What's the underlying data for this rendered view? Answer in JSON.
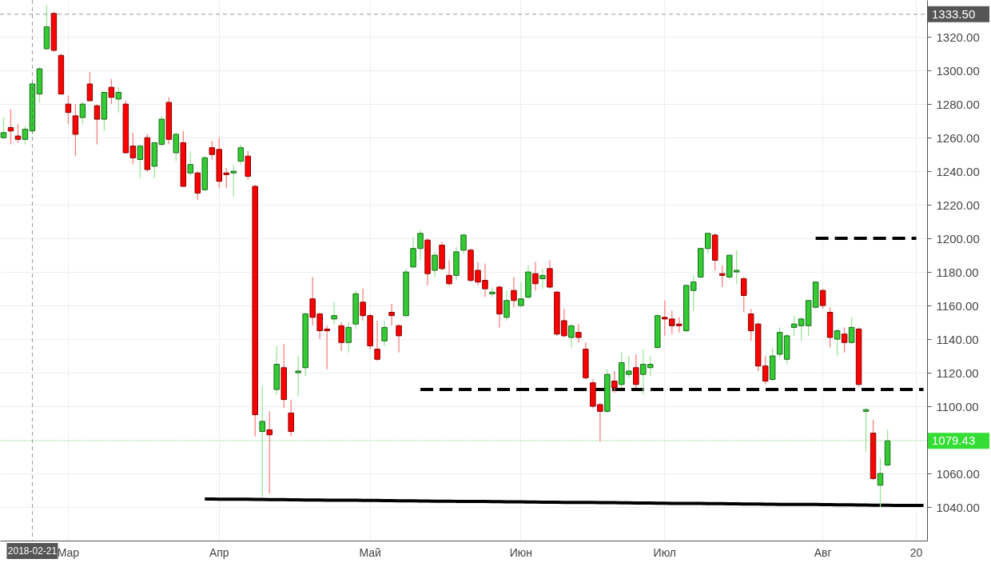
{
  "chart_data": {
    "type": "candlestick",
    "categories": [
      null,
      null,
      null,
      null,
      "2018-02-21",
      null,
      null,
      null,
      null,
      "Мар",
      null,
      null,
      null,
      null,
      null,
      null,
      null,
      null,
      null,
      null,
      null,
      null,
      null,
      null,
      null,
      null,
      null,
      null,
      null,
      null,
      "Апр",
      null,
      null,
      null,
      null,
      null,
      null,
      null,
      null,
      null,
      null,
      null,
      null,
      null,
      null,
      null,
      null,
      null,
      null,
      null,
      null,
      "Май",
      null,
      null,
      null,
      null,
      null,
      null,
      null,
      null,
      null,
      null,
      null,
      null,
      null,
      null,
      null,
      null,
      null,
      null,
      null,
      null,
      "Июн",
      null,
      null,
      null,
      null,
      null,
      null,
      null,
      null,
      null,
      null,
      null,
      null,
      null,
      null,
      null,
      null,
      null,
      null,
      null,
      "Июл",
      null,
      null,
      null,
      null,
      null,
      null,
      null,
      null,
      null,
      null,
      null,
      null,
      null,
      null,
      null,
      null,
      null,
      null,
      null,
      null,
      null,
      "Авг",
      null,
      null,
      null,
      null,
      null,
      null,
      null,
      null,
      null,
      null,
      null,
      null,
      "20",
      null
    ],
    "ohlc": [
      [
        1260,
        1272,
        1259,
        1263
      ],
      [
        1266,
        1277,
        1256,
        1264
      ],
      [
        1261,
        1268,
        1257,
        1259
      ],
      [
        1259,
        1267,
        1256,
        1265
      ],
      [
        1264,
        1293,
        1262,
        1292
      ],
      [
        1286,
        1302,
        1281,
        1301
      ],
      [
        1313,
        1339,
        1312,
        1326
      ],
      [
        1334,
        1335,
        1311,
        1312
      ],
      [
        1309,
        1310,
        1286,
        1286
      ],
      [
        1280,
        1285,
        1268,
        1275
      ],
      [
        1273,
        1280,
        1249,
        1262
      ],
      [
        1272,
        1281,
        1268,
        1280
      ],
      [
        1292,
        1299,
        1282,
        1282
      ],
      [
        1279,
        1280,
        1256,
        1271
      ],
      [
        1271,
        1287,
        1264,
        1287
      ],
      [
        1290,
        1295,
        1280,
        1284
      ],
      [
        1283,
        1290,
        1275,
        1287
      ],
      [
        1280,
        1282,
        1251,
        1251
      ],
      [
        1255,
        1263,
        1244,
        1248
      ],
      [
        1247,
        1256,
        1236,
        1255
      ],
      [
        1260,
        1262,
        1240,
        1241
      ],
      [
        1243,
        1257,
        1236,
        1257
      ],
      [
        1256,
        1273,
        1255,
        1271
      ],
      [
        1281,
        1284,
        1256,
        1259
      ],
      [
        1251,
        1263,
        1246,
        1262
      ],
      [
        1257,
        1264,
        1231,
        1231
      ],
      [
        1239,
        1252,
        1237,
        1244
      ],
      [
        1239,
        1240,
        1223,
        1227
      ],
      [
        1229,
        1249,
        1228,
        1248
      ],
      [
        1254,
        1258,
        1247,
        1250
      ],
      [
        1253,
        1260,
        1230,
        1234
      ],
      [
        1239,
        1242,
        1230,
        1238
      ],
      [
        1239,
        1244,
        1225,
        1240
      ],
      [
        1246,
        1256,
        1244,
        1254
      ],
      [
        1249,
        1252,
        1235,
        1237
      ],
      [
        1231,
        1232,
        1082,
        1095
      ],
      [
        1085,
        1112,
        1046,
        1091
      ],
      [
        1086,
        1097,
        1048,
        1083
      ],
      [
        1110,
        1136,
        1107,
        1125
      ],
      [
        1123,
        1137,
        1099,
        1104
      ],
      [
        1096,
        1104,
        1082,
        1085
      ],
      [
        1120,
        1130,
        1106,
        1121
      ],
      [
        1123,
        1156,
        1118,
        1155
      ],
      [
        1164,
        1177,
        1148,
        1153
      ],
      [
        1155,
        1156,
        1140,
        1145
      ],
      [
        1146,
        1148,
        1122,
        1145
      ],
      [
        1152,
        1162,
        1149,
        1154
      ],
      [
        1148,
        1150,
        1133,
        1138
      ],
      [
        1138,
        1150,
        1132,
        1147
      ],
      [
        1149,
        1169,
        1146,
        1167
      ],
      [
        1162,
        1170,
        1151,
        1154
      ],
      [
        1154,
        1155,
        1134,
        1136
      ],
      [
        1134,
        1151,
        1127,
        1128
      ],
      [
        1139,
        1151,
        1136,
        1147
      ],
      [
        1156,
        1161,
        1148,
        1154
      ],
      [
        1148,
        1149,
        1132,
        1142
      ],
      [
        1154,
        1182,
        1153,
        1180
      ],
      [
        1183,
        1201,
        1182,
        1194
      ],
      [
        1194,
        1205,
        1187,
        1203
      ],
      [
        1199,
        1200,
        1172,
        1179
      ],
      [
        1181,
        1192,
        1177,
        1190
      ],
      [
        1196,
        1198,
        1181,
        1182
      ],
      [
        1178,
        1187,
        1172,
        1173
      ],
      [
        1178,
        1195,
        1175,
        1192
      ],
      [
        1193,
        1203,
        1191,
        1202
      ],
      [
        1193,
        1194,
        1174,
        1175
      ],
      [
        1181,
        1186,
        1172,
        1174
      ],
      [
        1175,
        1185,
        1165,
        1170
      ],
      [
        1167,
        1171,
        1165,
        1168
      ],
      [
        1171,
        1172,
        1147,
        1155
      ],
      [
        1153,
        1169,
        1151,
        1163
      ],
      [
        1169,
        1177,
        1159,
        1163
      ],
      [
        1160,
        1174,
        1159,
        1164
      ],
      [
        1165,
        1184,
        1164,
        1180
      ],
      [
        1179,
        1186,
        1169,
        1173
      ],
      [
        1176,
        1182,
        1170,
        1178
      ],
      [
        1182,
        1187,
        1170,
        1171
      ],
      [
        1168,
        1169,
        1142,
        1143
      ],
      [
        1151,
        1158,
        1141,
        1142
      ],
      [
        1141,
        1148,
        1135,
        1148
      ],
      [
        1144,
        1149,
        1138,
        1141
      ],
      [
        1134,
        1138,
        1116,
        1117
      ],
      [
        1114,
        1116,
        1099,
        1100
      ],
      [
        1101,
        1102,
        1079,
        1097
      ],
      [
        1097,
        1122,
        1096,
        1119
      ],
      [
        1115,
        1121,
        1108,
        1111
      ],
      [
        1113,
        1132,
        1111,
        1126
      ],
      [
        1119,
        1130,
        1117,
        1121
      ],
      [
        1123,
        1131,
        1111,
        1113
      ],
      [
        1119,
        1134,
        1107,
        1125
      ],
      [
        1123,
        1130,
        1118,
        1125
      ],
      [
        1135,
        1155,
        1134,
        1154
      ],
      [
        1153,
        1163,
        1142,
        1152
      ],
      [
        1152,
        1157,
        1143,
        1148
      ],
      [
        1149,
        1153,
        1144,
        1148
      ],
      [
        1145,
        1172,
        1144,
        1172
      ],
      [
        1169,
        1178,
        1157,
        1174
      ],
      [
        1177,
        1194,
        1176,
        1194
      ],
      [
        1194,
        1203,
        1191,
        1203
      ],
      [
        1202,
        1203,
        1181,
        1187
      ],
      [
        1179,
        1184,
        1171,
        1178
      ],
      [
        1177,
        1190,
        1176,
        1190
      ],
      [
        1180,
        1193,
        1173,
        1181
      ],
      [
        1176,
        1177,
        1156,
        1166
      ],
      [
        1155,
        1158,
        1139,
        1145
      ],
      [
        1149,
        1150,
        1121,
        1124
      ],
      [
        1124,
        1130,
        1113,
        1115
      ],
      [
        1116,
        1135,
        1115,
        1130
      ],
      [
        1131,
        1147,
        1129,
        1144
      ],
      [
        1128,
        1143,
        1125,
        1142
      ],
      [
        1147,
        1154,
        1142,
        1149
      ],
      [
        1148,
        1153,
        1139,
        1152
      ],
      [
        1148,
        1163,
        1142,
        1163
      ],
      [
        1159,
        1174,
        1158,
        1174
      ],
      [
        1169,
        1170,
        1158,
        1160
      ],
      [
        1156,
        1159,
        1135,
        1141
      ],
      [
        1140,
        1146,
        1130,
        1145
      ],
      [
        1143,
        1147,
        1132,
        1138
      ],
      [
        1138,
        1153,
        1137,
        1147
      ],
      [
        1146,
        1147,
        1112,
        1113
      ],
      [
        1097,
        1099,
        1073,
        1098
      ],
      [
        1084,
        1092,
        1056,
        1057
      ],
      [
        1053,
        1069,
        1040,
        1060
      ],
      [
        1065,
        1086,
        1064,
        1079.43
      ],
      null,
      null,
      null,
      null,
      null
    ],
    "colors": [
      "#33cc33",
      "#ff0000",
      "#ff0000",
      "#33cc33",
      "#33cc33",
      "#33cc33",
      "#33cc33",
      "#ff0000",
      "#ff0000",
      "#ff0000",
      "#ff0000",
      "#33cc33",
      "#ff0000",
      "#ff0000",
      "#33cc33",
      "#ff0000",
      "#33cc33",
      "#ff0000",
      "#ff0000",
      "#33cc33",
      "#ff0000",
      "#33cc33",
      "#33cc33",
      "#ff0000",
      "#33cc33",
      "#ff0000",
      "#33cc33",
      "#ff0000",
      "#33cc33",
      "#ff0000",
      "#ff0000",
      "#ff0000",
      "#33cc33",
      "#33cc33",
      "#ff0000",
      "#ff0000",
      "#33cc33",
      "#ff0000",
      "#33cc33",
      "#ff0000",
      "#ff0000",
      "#33cc33",
      "#33cc33",
      "#ff0000",
      "#ff0000",
      "#ff0000",
      "#33cc33",
      "#ff0000",
      "#33cc33",
      "#33cc33",
      "#ff0000",
      "#ff0000",
      "#ff0000",
      "#33cc33",
      "#ff0000",
      "#ff0000",
      "#33cc33",
      "#33cc33",
      "#33cc33",
      "#ff0000",
      "#33cc33",
      "#ff0000",
      "#ff0000",
      "#33cc33",
      "#33cc33",
      "#ff0000",
      "#ff0000",
      "#ff0000",
      "#33cc33",
      "#ff0000",
      "#33cc33",
      "#ff0000",
      "#33cc33",
      "#33cc33",
      "#ff0000",
      "#33cc33",
      "#ff0000",
      "#ff0000",
      "#ff0000",
      "#33cc33",
      "#ff0000",
      "#ff0000",
      "#ff0000",
      "#ff0000",
      "#33cc33",
      "#ff0000",
      "#33cc33",
      "#33cc33",
      "#ff0000",
      "#33cc33",
      "#33cc33",
      "#33cc33",
      "#ff0000",
      "#ff0000",
      "#ff0000",
      "#33cc33",
      "#33cc33",
      "#33cc33",
      "#33cc33",
      "#ff0000",
      "#ff0000",
      "#33cc33",
      "#33cc33",
      "#ff0000",
      "#ff0000",
      "#ff0000",
      "#ff0000",
      "#33cc33",
      "#33cc33",
      "#33cc33",
      "#33cc33",
      "#33cc33",
      "#33cc33",
      "#33cc33",
      "#ff0000",
      "#ff0000",
      "#33cc33",
      "#ff0000",
      "#33cc33",
      "#ff0000",
      "#33cc33",
      "#ff0000",
      "#33cc33",
      "#33cc33",
      null,
      null,
      null,
      null,
      null
    ],
    "series": [
      {
        "type": "line",
        "color": "#000000",
        "line_style": "solid",
        "values": [
          null,
          null,
          null,
          null,
          null,
          null,
          null,
          null,
          null,
          null,
          null,
          null,
          null,
          null,
          null,
          null,
          null,
          null,
          null,
          null,
          null,
          null,
          null,
          null,
          null,
          null,
          null,
          null,
          1044.8,
          1044.8,
          1044.7,
          1044.7,
          1044.6,
          1044.6,
          1044.6,
          1044.5,
          1044.5,
          1044.4,
          1044.4,
          1044.4,
          1044.3,
          1044.3,
          1044.2,
          1044.2,
          1044.2,
          1044.1,
          1044.1,
          1044.1,
          1044.0,
          1044.0,
          1043.9,
          1043.9,
          1043.9,
          1043.8,
          1043.8,
          1043.7,
          1043.7,
          1043.7,
          1043.6,
          1043.6,
          1043.5,
          1043.5,
          1043.5,
          1043.4,
          1043.4,
          1043.3,
          1043.3,
          1043.3,
          1043.2,
          1043.2,
          1043.1,
          1043.1,
          1043.1,
          1043.0,
          1043.0,
          1042.9,
          1042.9,
          1042.9,
          1042.8,
          1042.8,
          1042.8,
          1042.7,
          1042.7,
          1042.6,
          1042.6,
          1042.6,
          1042.5,
          1042.5,
          1042.4,
          1042.4,
          1042.4,
          1042.3,
          1042.3,
          1042.2,
          1042.2,
          1042.2,
          1042.1,
          1042.1,
          1042.0,
          1042.0,
          1042.0,
          1041.9,
          1041.9,
          1041.8,
          1041.8,
          1041.8,
          1041.7,
          1041.7,
          1041.6,
          1041.6,
          1041.6,
          1041.5,
          1041.5,
          1041.5,
          1041.4,
          1041.4,
          1041.3,
          1041.3,
          1041.3,
          1041.2,
          1041.2,
          1041.1,
          1041.1,
          1041.1,
          1041.0,
          1041.0,
          1040.9,
          1040.9,
          1040.9
        ]
      },
      {
        "type": "line",
        "color": "#000000",
        "line_style": "dashed",
        "values": [
          null,
          null,
          null,
          null,
          null,
          null,
          null,
          null,
          null,
          null,
          null,
          null,
          null,
          null,
          null,
          null,
          null,
          null,
          null,
          null,
          null,
          null,
          null,
          null,
          null,
          null,
          null,
          null,
          null,
          null,
          null,
          null,
          null,
          null,
          null,
          null,
          null,
          null,
          null,
          null,
          null,
          null,
          null,
          null,
          null,
          null,
          null,
          null,
          null,
          null,
          null,
          null,
          null,
          null,
          null,
          null,
          null,
          null,
          1110,
          1110,
          1110,
          1110,
          1110,
          1110,
          1110,
          1110,
          1110,
          1110,
          1110,
          1110,
          1110,
          1110,
          1110,
          1110,
          1110,
          1110,
          1110,
          1110,
          1110,
          1110,
          1110,
          1110,
          null,
          1110,
          null,
          1110,
          1110,
          1110,
          1110,
          1110,
          1110,
          1110,
          1110,
          1110,
          1110,
          1110,
          1110,
          1110,
          1110,
          1110,
          1110,
          1110,
          1110,
          1110,
          1110,
          1110,
          1110,
          1110,
          1110,
          1110,
          1110,
          1110,
          1110,
          1110,
          1110,
          1110,
          1110,
          1110,
          1110,
          1110,
          1110,
          1110,
          1110,
          1110,
          1110,
          1110,
          1110,
          1110,
          1110
        ]
      },
      {
        "type": "line",
        "color": "#000000",
        "line_style": "dashed",
        "values": [
          null,
          null,
          null,
          null,
          null,
          null,
          null,
          null,
          null,
          null,
          null,
          null,
          null,
          null,
          null,
          null,
          null,
          null,
          null,
          null,
          null,
          null,
          null,
          null,
          null,
          null,
          null,
          null,
          null,
          null,
          null,
          null,
          null,
          null,
          null,
          null,
          null,
          null,
          null,
          null,
          null,
          null,
          null,
          null,
          null,
          null,
          null,
          null,
          null,
          null,
          null,
          null,
          null,
          null,
          null,
          null,
          null,
          null,
          null,
          null,
          null,
          null,
          null,
          null,
          null,
          null,
          null,
          null,
          null,
          null,
          null,
          null,
          null,
          null,
          null,
          null,
          null,
          null,
          null,
          null,
          null,
          null,
          null,
          null,
          null,
          null,
          null,
          null,
          null,
          null,
          null,
          null,
          null,
          null,
          null,
          null,
          null,
          null,
          null,
          null,
          null,
          null,
          null,
          null,
          null,
          null,
          null,
          null,
          null,
          null,
          null,
          null,
          null,
          1200,
          1200,
          1200,
          1200,
          1200,
          1200,
          1200,
          1200,
          1200,
          1200,
          1200,
          1200,
          1200,
          1200,
          1200,
          null
        ]
      }
    ],
    "ylim": [
      1020,
      1342
    ],
    "yticks": [
      {
        "value": 1040,
        "label": "1040.00"
      },
      {
        "value": 1060,
        "label": "1060.00"
      },
      {
        "value": 1080,
        "label": null
      },
      {
        "value": 1100,
        "label": "1100.00"
      },
      {
        "value": 1120,
        "label": "1120.00"
      },
      {
        "value": 1140,
        "label": "1140.00"
      },
      {
        "value": 1160,
        "label": "1160.00"
      },
      {
        "value": 1180,
        "label": "1180.00"
      },
      {
        "value": 1200,
        "label": "1200.00"
      },
      {
        "value": 1220,
        "label": "1220.00"
      },
      {
        "value": 1240,
        "label": "1240.00"
      },
      {
        "value": 1260,
        "label": "1260.00"
      },
      {
        "value": 1280,
        "label": "1280.00"
      },
      {
        "value": 1300,
        "label": "1300.00"
      },
      {
        "value": 1320,
        "label": "1320.00"
      }
    ],
    "ref_lines": [
      {
        "axis": "x",
        "value": "2018-02-21",
        "color": "#555555",
        "line_style": "dashed"
      },
      {
        "axis": "y",
        "value": 1333.5,
        "label": "1333.50",
        "color": "#555555",
        "line_style": "dashed"
      },
      {
        "axis": "y",
        "value": 1079.43,
        "label": "1079.43",
        "color": "#33dd33",
        "line_style": "dotted"
      }
    ],
    "grid": true
  }
}
